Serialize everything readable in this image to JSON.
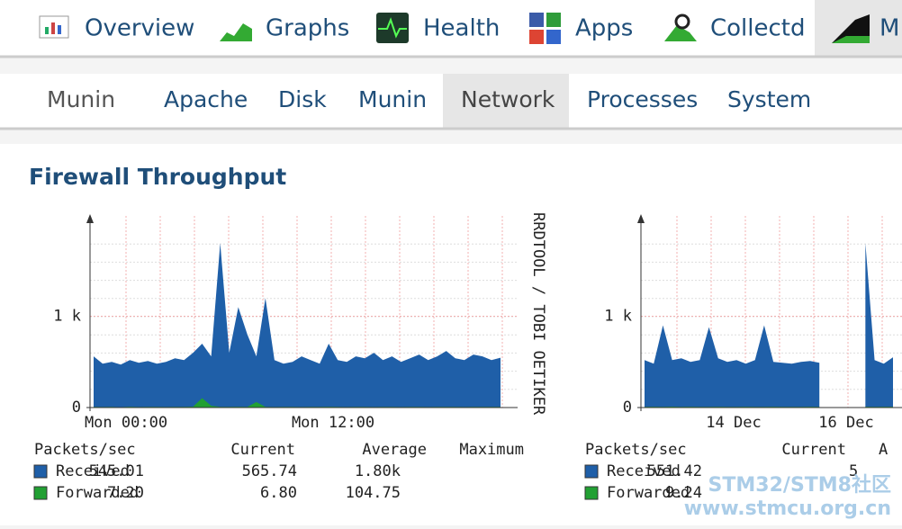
{
  "nav": {
    "tabs": [
      "Overview",
      "Graphs",
      "Health",
      "Apps",
      "Collectd",
      "M"
    ]
  },
  "subnav": {
    "label": "Munin",
    "tabs": [
      "Apache",
      "Disk",
      "Munin",
      "Network",
      "Processes",
      "System"
    ],
    "active": "Network"
  },
  "panel": {
    "title": "Firewall Throughput"
  },
  "graphs": [
    {
      "ylim": [
        0,
        2000
      ],
      "yticks": [
        {
          "value": 1000,
          "label": "1 k"
        },
        0
      ],
      "xlabels": [
        "Mon 00:00",
        "Mon 12:00"
      ],
      "side_text": "RRDTOOL / TOBI OETIKER",
      "legend": {
        "header": [
          "Packets/sec",
          "Current",
          "Average",
          "Maximum"
        ],
        "rows": [
          [
            "Received",
            "545.01",
            "565.74",
            "1.80k"
          ],
          [
            "Forwarded",
            "7.20",
            "6.80",
            "104.75"
          ]
        ]
      },
      "colors": [
        "#1f5fa8",
        "#22a033"
      ],
      "received": [
        560,
        480,
        500,
        470,
        520,
        490,
        510,
        480,
        500,
        540,
        520,
        600,
        700,
        560,
        1800,
        600,
        1100,
        800,
        560,
        1200,
        520,
        480,
        500,
        560,
        520,
        480,
        700,
        520,
        500,
        560,
        540,
        600,
        520,
        560,
        500,
        540,
        580,
        520,
        560,
        620,
        540,
        520,
        580,
        560,
        520,
        545
      ],
      "forwarded": [
        8,
        6,
        7,
        5,
        9,
        6,
        7,
        8,
        6,
        7,
        8,
        10,
        104,
        20,
        8,
        7,
        9,
        8,
        60,
        7,
        6,
        8,
        7,
        6,
        7,
        8,
        9,
        7,
        6,
        8,
        7,
        6,
        8,
        7,
        6,
        7,
        8,
        6,
        7,
        8,
        7,
        6,
        7,
        8,
        7,
        7
      ]
    },
    {
      "ylim": [
        0,
        2000
      ],
      "yticks": [
        {
          "value": 1000,
          "label": "1 k"
        },
        0
      ],
      "xlabels": [
        "14 Dec",
        "16 Dec"
      ],
      "legend": {
        "header": [
          "Packets/sec",
          "Current",
          "A"
        ],
        "rows": [
          [
            "Received",
            "551.42",
            "5"
          ],
          [
            "Forwarded",
            "9.24"
          ]
        ]
      },
      "colors": [
        "#1f5fa8",
        "#22a033"
      ],
      "received": [
        520,
        480,
        900,
        520,
        540,
        500,
        520,
        880,
        540,
        500,
        520,
        480,
        520,
        900,
        500,
        490,
        480,
        500,
        510,
        490,
        null,
        null,
        null,
        null,
        1800,
        520,
        480,
        551
      ],
      "forwarded": [
        8,
        9,
        7,
        10,
        8,
        9,
        7,
        8,
        9,
        7,
        8,
        9,
        8,
        7,
        9,
        8,
        7,
        8,
        9,
        8,
        null,
        null,
        null,
        null,
        9,
        8,
        9,
        9
      ]
    }
  ],
  "watermark": [
    "STM32/STM8社区",
    "www.stmcu.org.cn"
  ]
}
